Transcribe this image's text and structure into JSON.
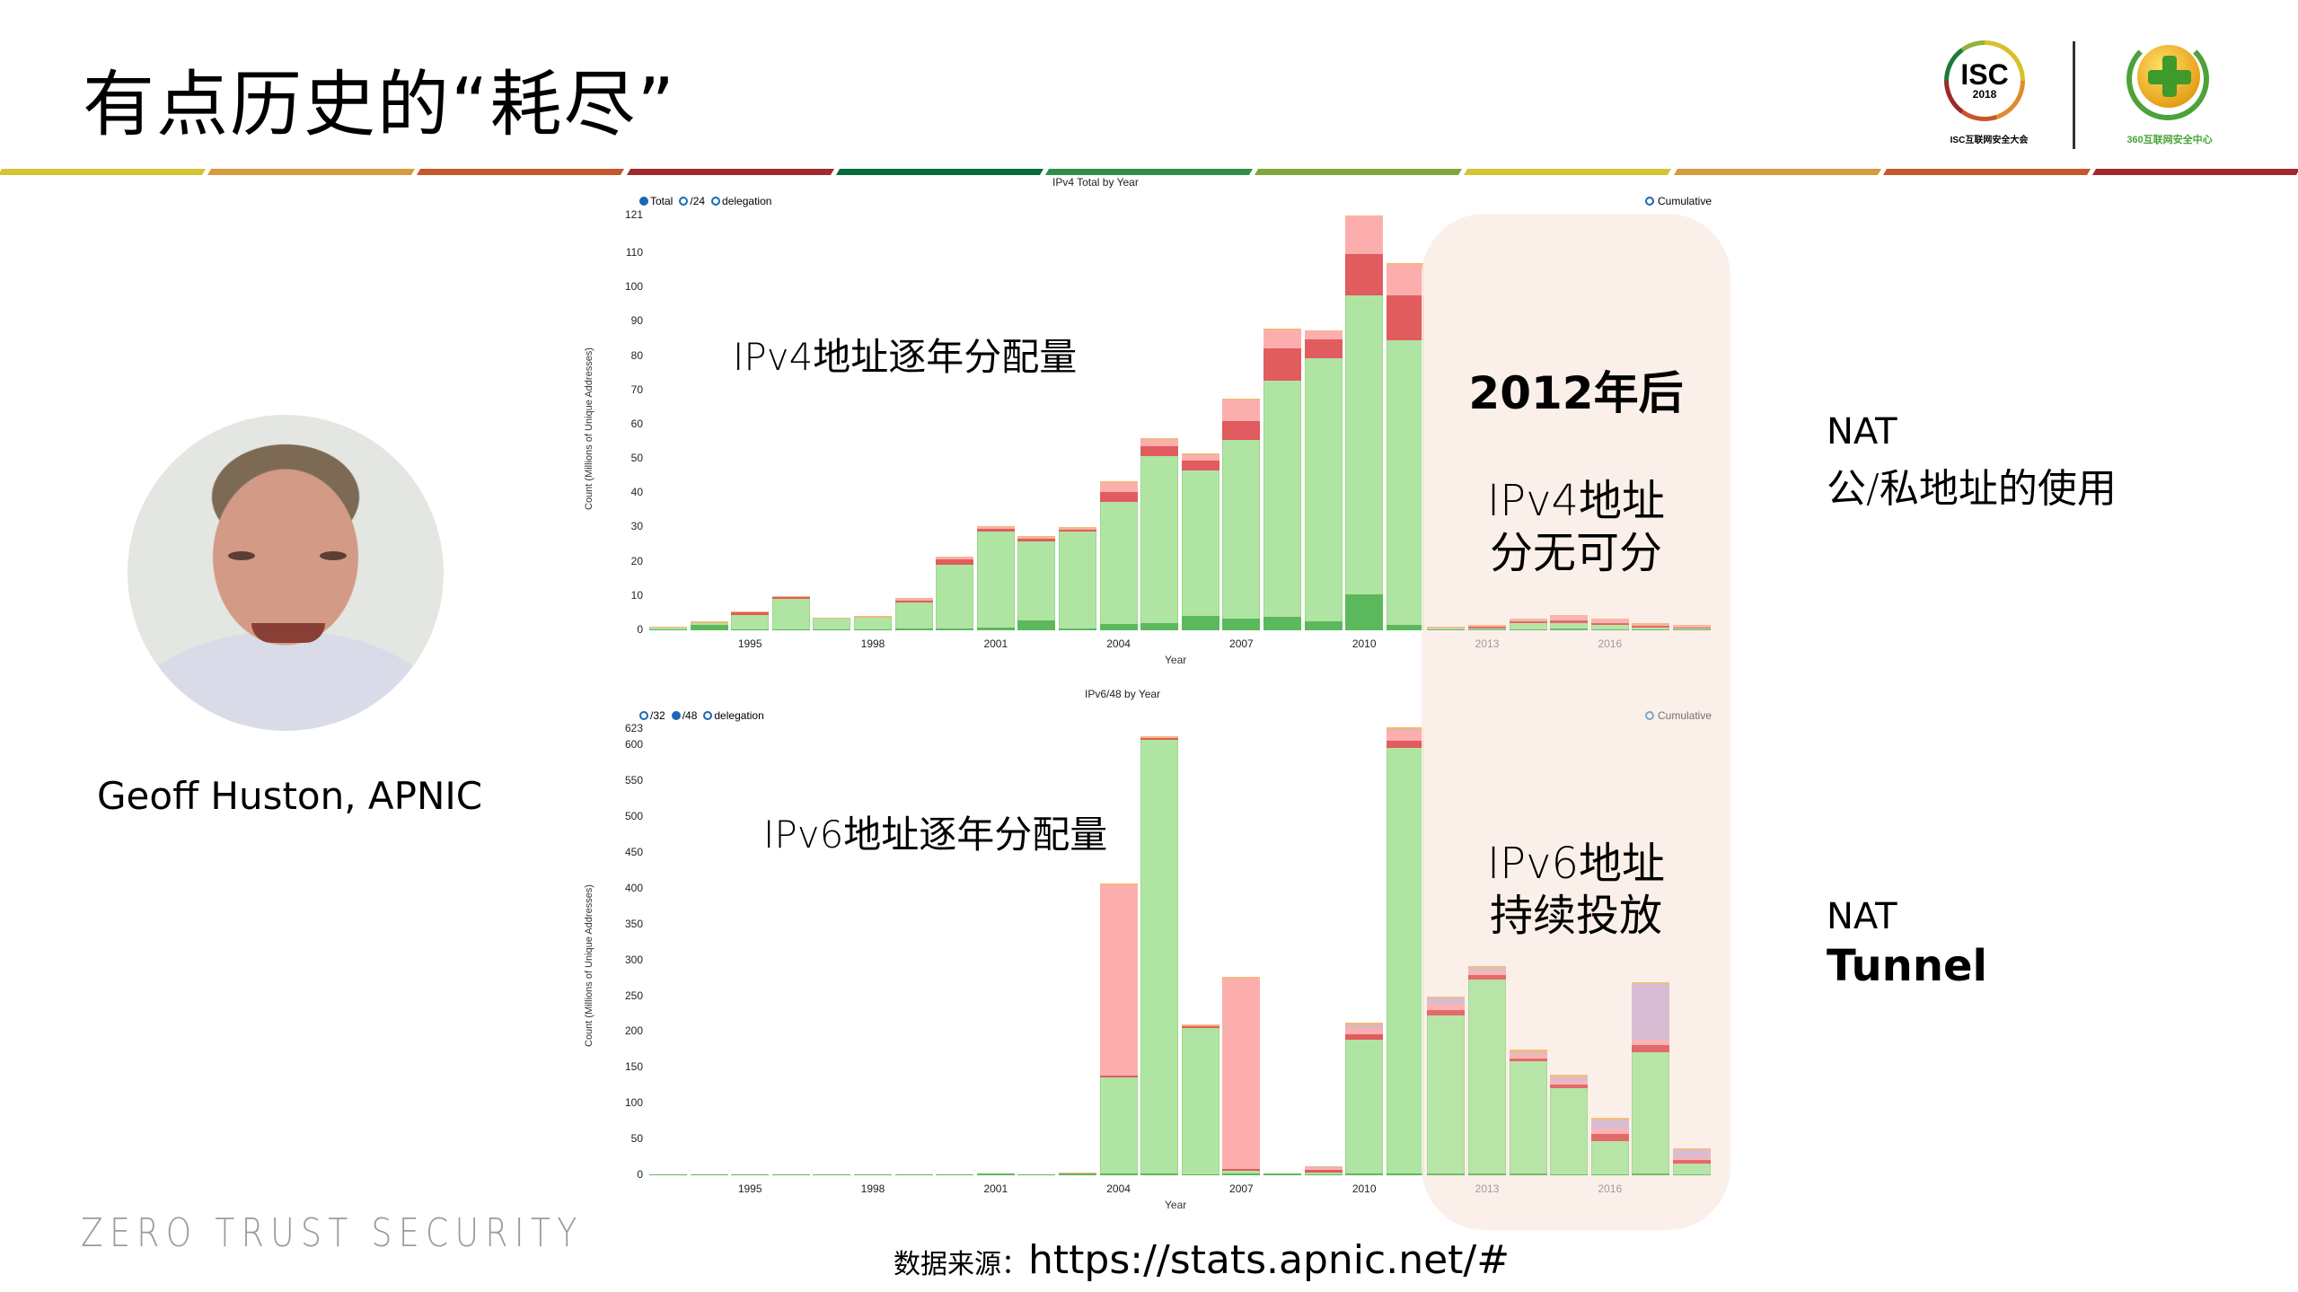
{
  "slide": {
    "title": "有点历史的“耗尽”",
    "band_colors": [
      "#d4c434",
      "#d79a3c",
      "#c4582a",
      "#a12a2e",
      "#076b3a",
      "#2f8f47",
      "#7ea83d",
      "#d4c434",
      "#d79a3c",
      "#c4582a",
      "#a12a2e"
    ],
    "logos": {
      "isc_word": "ISC",
      "isc_year": "2018",
      "isc_caption": "ISC互联网安全大会",
      "q360_caption": "360互联网安全中心"
    },
    "person": {
      "caption": "Geoff Huston, APNIC"
    },
    "brand_footer": "ZERO TRUST SECURITY",
    "source": {
      "label": "数据来源：",
      "url": "https://stats.apnic.net/#"
    },
    "overlay": {
      "heading": "2012年后",
      "ipv4_line1": "IPv4地址",
      "ipv4_line2": "分无可分",
      "ipv6_line1": "IPv6地址",
      "ipv6_line2": "持续投放"
    },
    "annotations": {
      "ipv4": "IPv4地址逐年分配量",
      "ipv6": "IPv6地址逐年分配量"
    },
    "side_notes": {
      "top_line1": "NAT",
      "top_line2": "公/私地址的使用",
      "bottom_line1": "NAT",
      "bottom_line2": "Tunnel"
    },
    "segment_colors": {
      "base": "#5cb85c",
      "main": "#b0e4a2",
      "red": "#e05c5e",
      "pink": "#fcaeae",
      "purple": "#d3b8d2",
      "top": "#f2b77e"
    }
  },
  "chart_data": [
    {
      "type": "bar",
      "stacked": true,
      "title": "IPv4 Total by Year",
      "xlabel": "Year",
      "ylabel": "Count (Millions of Unique Addresses)",
      "legend": [
        {
          "label": "Total",
          "selected": true
        },
        {
          "label": "/24",
          "selected": false
        },
        {
          "label": "delegation",
          "selected": false
        }
      ],
      "toggle": {
        "label": "Cumulative",
        "selected": false
      },
      "ylim": [
        0,
        121
      ],
      "yticks": [
        0,
        10,
        20,
        30,
        40,
        50,
        60,
        70,
        80,
        90,
        100,
        110,
        121
      ],
      "xticks": [
        "1995",
        "1998",
        "2001",
        "2004",
        "2007",
        "2010",
        "2013",
        "2016"
      ],
      "categories": [
        "1993",
        "1994",
        "1995",
        "1996",
        "1997",
        "1998",
        "1999",
        "2000",
        "2001",
        "2002",
        "2003",
        "2004",
        "2005",
        "2006",
        "2007",
        "2008",
        "2009",
        "2010",
        "2011",
        "2012",
        "2013",
        "2014",
        "2015",
        "2016",
        "2017",
        "2018"
      ],
      "series": [
        {
          "name": "base",
          "values": [
            0.3,
            1.5,
            0.3,
            0.3,
            0.2,
            0.2,
            0.6,
            0.6,
            0.8,
            2.8,
            0.6,
            1.8,
            2.0,
            4.3,
            3.4,
            4.0,
            2.7,
            10.5,
            1.5,
            0.2,
            0.3,
            0.4,
            0.4,
            0.3,
            0.3,
            0.2
          ]
        },
        {
          "name": "main",
          "values": [
            0.4,
            0.6,
            4.0,
            9.0,
            3.2,
            3.4,
            8.0,
            18.9,
            28.0,
            23.3,
            28.8,
            35.7,
            48.8,
            42.6,
            52.2,
            68.8,
            76.8,
            87.3,
            83.2,
            0.3,
            0.5,
            1.8,
            1.7,
            1.3,
            0.6,
            0.3
          ]
        },
        {
          "name": "red",
          "values": [
            0,
            0,
            0.8,
            0.3,
            0,
            0,
            0.6,
            1.5,
            1.0,
            0.6,
            0.4,
            2.8,
            3.0,
            2.7,
            5.4,
            9.5,
            5.4,
            12.0,
            13.0,
            0.2,
            0.2,
            0.5,
            0.8,
            0.6,
            0.5,
            0.4
          ]
        },
        {
          "name": "pink",
          "values": [
            0,
            0,
            0,
            0,
            0,
            0,
            0.1,
            0.3,
            0.3,
            0.3,
            0.1,
            2.7,
            1.8,
            1.7,
            6.0,
            5.2,
            2.3,
            11.0,
            9.0,
            0.1,
            0.2,
            0.6,
            1.2,
            1.0,
            0.4,
            0.4
          ]
        },
        {
          "name": "top",
          "values": [
            0.3,
            0.4,
            0.4,
            0.4,
            0.4,
            0.6,
            0.2,
            0.2,
            0.4,
            0.5,
            0.2,
            0.5,
            0.4,
            0.2,
            0.5,
            0.5,
            0.3,
            0.2,
            0.3,
            0.2,
            0.3,
            0.2,
            0.4,
            0.3,
            0.2,
            0.2
          ]
        }
      ]
    },
    {
      "type": "bar",
      "stacked": true,
      "title": "IPv6/48 by Year",
      "xlabel": "Year",
      "ylabel": "Count (Millions of Unique Addresses)",
      "legend": [
        {
          "label": "/32",
          "selected": false
        },
        {
          "label": "/48",
          "selected": true
        },
        {
          "label": "delegation",
          "selected": false
        }
      ],
      "toggle": {
        "label": "Cumulative",
        "selected": false
      },
      "ylim": [
        0,
        623
      ],
      "yticks": [
        0,
        50,
        100,
        150,
        200,
        250,
        300,
        350,
        400,
        450,
        500,
        550,
        600,
        623
      ],
      "xticks": [
        "1995",
        "1998",
        "2001",
        "2004",
        "2007",
        "2010",
        "2013",
        "2016"
      ],
      "categories": [
        "1993",
        "1994",
        "1995",
        "1996",
        "1997",
        "1998",
        "1999",
        "2000",
        "2001",
        "2002",
        "2003",
        "2004",
        "2005",
        "2006",
        "2007",
        "2008",
        "2009",
        "2010",
        "2011",
        "2012",
        "2013",
        "2014",
        "2015",
        "2016",
        "2017",
        "2018"
      ],
      "series": [
        {
          "name": "base",
          "values": [
            0.5,
            0.5,
            0.5,
            0.5,
            0.5,
            0.5,
            1.0,
            1.5,
            2.0,
            0.5,
            3.0,
            1,
            1,
            1,
            1,
            2,
            1,
            1,
            1,
            1,
            1,
            1,
            1,
            1,
            1,
            1
          ]
        },
        {
          "name": "main",
          "values": [
            0,
            0,
            0,
            0,
            0,
            0,
            0,
            0,
            0,
            0,
            0,
            135,
            608,
            206,
            5,
            0,
            3,
            188,
            596,
            222,
            272,
            158,
            120,
            46,
            170,
            15
          ]
        },
        {
          "name": "red",
          "values": [
            0,
            0,
            0,
            0,
            0,
            0,
            0,
            0,
            0,
            0,
            0,
            2,
            1,
            1,
            2,
            0,
            3,
            8,
            10,
            8,
            6,
            4,
            6,
            10,
            10,
            5
          ]
        },
        {
          "name": "pink",
          "values": [
            0,
            0,
            0,
            0,
            0,
            0,
            0,
            0,
            0,
            0,
            0,
            267,
            0,
            0,
            266,
            0,
            3,
            9,
            13,
            8,
            6,
            5,
            5,
            8,
            8,
            4
          ]
        },
        {
          "name": "purple",
          "values": [
            0,
            0,
            0,
            0,
            0,
            0,
            0,
            0,
            0,
            0,
            0,
            0,
            0,
            0,
            0,
            0,
            1,
            3,
            2,
            8,
            3,
            3,
            4,
            12,
            78,
            10
          ]
        },
        {
          "name": "top",
          "values": [
            0,
            0,
            0,
            0,
            0,
            0,
            0,
            0,
            0,
            0,
            1,
            2,
            3,
            2,
            3,
            0,
            2,
            4,
            3,
            3,
            4,
            4,
            4,
            3,
            3,
            3
          ]
        }
      ]
    }
  ]
}
